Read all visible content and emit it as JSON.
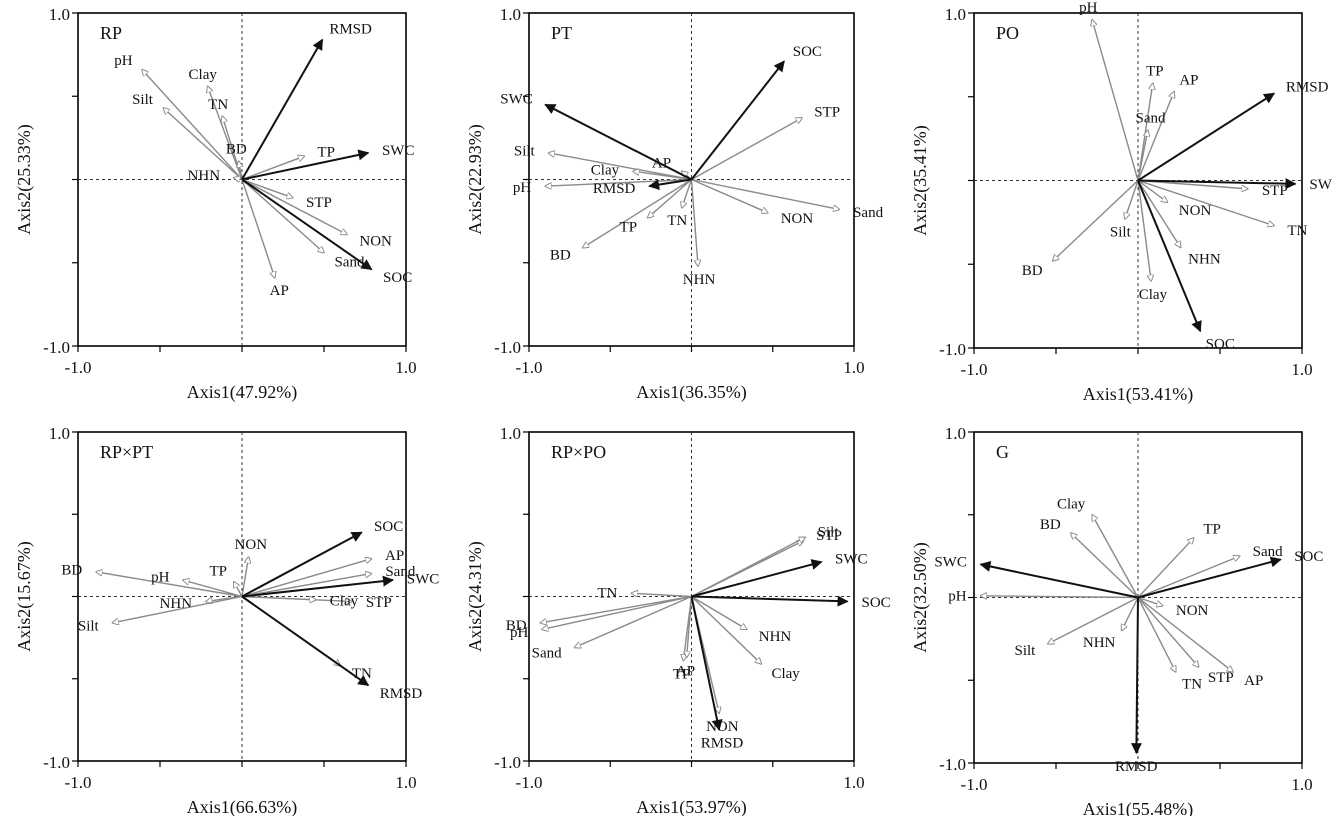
{
  "colors": {
    "env_arrow": "#8a8a8a",
    "response_arrow": "#111111",
    "frame": "#000000",
    "guide": "#333333"
  },
  "chart_data": [
    {
      "type": "scatter",
      "subtype": "rda-biplot",
      "title": "RP",
      "xlabel": "Axis1(47.92%)",
      "ylabel": "Axis2(25.33%)",
      "xlim": [
        -1.0,
        1.0
      ],
      "ylim": [
        -1.0,
        1.0
      ],
      "xticks": [
        "-1.0",
        "1.0"
      ],
      "yticks": [
        "-1.0",
        "1.0"
      ],
      "vectors": [
        {
          "name": "pH",
          "x": -0.61,
          "y": 0.66,
          "type": "env"
        },
        {
          "name": "Silt",
          "x": -0.48,
          "y": 0.43,
          "type": "env"
        },
        {
          "name": "Clay",
          "x": -0.21,
          "y": 0.56,
          "type": "env"
        },
        {
          "name": "TN",
          "x": -0.12,
          "y": 0.38,
          "type": "env"
        },
        {
          "name": "BD",
          "x": -0.02,
          "y": 0.11,
          "type": "env"
        },
        {
          "name": "NHN",
          "x": -0.05,
          "y": 0.01,
          "type": "env"
        },
        {
          "name": "TP",
          "x": 0.38,
          "y": 0.14,
          "type": "env"
        },
        {
          "name": "STP",
          "x": 0.31,
          "y": -0.11,
          "type": "env"
        },
        {
          "name": "NON",
          "x": 0.64,
          "y": -0.33,
          "type": "env"
        },
        {
          "name": "Sand",
          "x": 0.5,
          "y": -0.44,
          "type": "env"
        },
        {
          "name": "AP",
          "x": 0.2,
          "y": -0.59,
          "type": "env"
        },
        {
          "name": "RMSD",
          "x": 0.49,
          "y": 0.84,
          "type": "response"
        },
        {
          "name": "SWC",
          "x": 0.77,
          "y": 0.16,
          "type": "response"
        },
        {
          "name": "SOC",
          "x": 0.79,
          "y": -0.54,
          "type": "response"
        }
      ]
    },
    {
      "type": "scatter",
      "subtype": "rda-biplot",
      "title": "PT",
      "xlabel": "Axis1(36.35%)",
      "ylabel": "Axis2(22.93%)",
      "xlim": [
        -1.0,
        1.0
      ],
      "ylim": [
        -1.0,
        1.0
      ],
      "xticks": [
        "-1.0",
        "1.0"
      ],
      "yticks": [
        "-1.0",
        "1.0"
      ],
      "vectors": [
        {
          "name": "Silt",
          "x": -0.88,
          "y": 0.16,
          "type": "env"
        },
        {
          "name": "pH",
          "x": -0.9,
          "y": -0.04,
          "type": "env"
        },
        {
          "name": "BD",
          "x": -0.67,
          "y": -0.41,
          "type": "env"
        },
        {
          "name": "Clay",
          "x": -0.36,
          "y": 0.05,
          "type": "env"
        },
        {
          "name": "AP",
          "x": -0.06,
          "y": 0.05,
          "type": "env"
        },
        {
          "name": "TP",
          "x": -0.27,
          "y": -0.23,
          "type": "env"
        },
        {
          "name": "TN",
          "x": -0.06,
          "y": -0.17,
          "type": "env"
        },
        {
          "name": "NHN",
          "x": 0.04,
          "y": -0.52,
          "type": "env"
        },
        {
          "name": "NON",
          "x": 0.47,
          "y": -0.2,
          "type": "env"
        },
        {
          "name": "Sand",
          "x": 0.91,
          "y": -0.18,
          "type": "env"
        },
        {
          "name": "STP",
          "x": 0.68,
          "y": 0.37,
          "type": "env"
        },
        {
          "name": "SWC",
          "x": -0.9,
          "y": 0.45,
          "type": "response"
        },
        {
          "name": "SOC",
          "x": 0.57,
          "y": 0.71,
          "type": "response"
        },
        {
          "name": "RMSD",
          "x": -0.26,
          "y": -0.04,
          "type": "response"
        }
      ]
    },
    {
      "type": "scatter",
      "subtype": "rda-biplot",
      "title": "PO",
      "xlabel": "Axis1(53.41%)",
      "ylabel": "Axis2(35.41%)",
      "xlim": [
        -1.0,
        1.0
      ],
      "ylim": [
        -1.0,
        1.0
      ],
      "xticks": [
        "-1.0",
        "1.0"
      ],
      "yticks": [
        "-1.0",
        "1.0"
      ],
      "vectors": [
        {
          "name": "pH",
          "x": -0.28,
          "y": 0.96,
          "type": "env"
        },
        {
          "name": "TP",
          "x": 0.09,
          "y": 0.58,
          "type": "env"
        },
        {
          "name": "AP",
          "x": 0.22,
          "y": 0.53,
          "type": "env"
        },
        {
          "name": "Sand",
          "x": 0.06,
          "y": 0.3,
          "type": "env"
        },
        {
          "name": "STP",
          "x": 0.67,
          "y": -0.05,
          "type": "env"
        },
        {
          "name": "TN",
          "x": 0.83,
          "y": -0.27,
          "type": "env"
        },
        {
          "name": "NON",
          "x": 0.18,
          "y": -0.13,
          "type": "env"
        },
        {
          "name": "NHN",
          "x": 0.26,
          "y": -0.4,
          "type": "env"
        },
        {
          "name": "Clay",
          "x": 0.08,
          "y": -0.6,
          "type": "env"
        },
        {
          "name": "Silt",
          "x": -0.08,
          "y": -0.23,
          "type": "env"
        },
        {
          "name": "BD",
          "x": -0.52,
          "y": -0.48,
          "type": "env"
        },
        {
          "name": "RMSD",
          "x": 0.83,
          "y": 0.52,
          "type": "response"
        },
        {
          "name": "SWC",
          "x": 0.96,
          "y": -0.02,
          "type": "response"
        },
        {
          "name": "SOC",
          "x": 0.38,
          "y": -0.9,
          "type": "response"
        }
      ]
    },
    {
      "type": "scatter",
      "subtype": "rda-biplot",
      "title": "RP×PT",
      "xlabel": "Axis1(66.63%)",
      "ylabel": "Axis2(15.67%)",
      "xlim": [
        -1.0,
        1.0
      ],
      "ylim": [
        -1.0,
        1.0
      ],
      "xticks": [
        "-1.0",
        "1.0"
      ],
      "yticks": [
        "-1.0",
        "1.0"
      ],
      "vectors": [
        {
          "name": "BD",
          "x": -0.89,
          "y": 0.15,
          "type": "env"
        },
        {
          "name": "pH",
          "x": -0.36,
          "y": 0.1,
          "type": "env"
        },
        {
          "name": "TP",
          "x": -0.05,
          "y": 0.09,
          "type": "env"
        },
        {
          "name": "NON",
          "x": 0.04,
          "y": 0.24,
          "type": "env"
        },
        {
          "name": "NHN",
          "x": -0.22,
          "y": -0.03,
          "type": "env"
        },
        {
          "name": "Silt",
          "x": -0.79,
          "y": -0.16,
          "type": "env"
        },
        {
          "name": "AP",
          "x": 0.79,
          "y": 0.23,
          "type": "env"
        },
        {
          "name": "Sand",
          "x": 0.79,
          "y": 0.14,
          "type": "env"
        },
        {
          "name": "STP",
          "x": 0.67,
          "y": -0.03,
          "type": "env"
        },
        {
          "name": "TN",
          "x": 0.6,
          "y": -0.42,
          "type": "env"
        },
        {
          "name": "Clay",
          "x": 0.45,
          "y": -0.02,
          "type": "env"
        },
        {
          "name": "SOC",
          "x": 0.73,
          "y": 0.39,
          "type": "response"
        },
        {
          "name": "SWC",
          "x": 0.92,
          "y": 0.1,
          "type": "response"
        },
        {
          "name": "RMSD",
          "x": 0.77,
          "y": -0.54,
          "type": "response"
        }
      ]
    },
    {
      "type": "scatter",
      "subtype": "rda-biplot",
      "title": "RP×PO",
      "xlabel": "Axis1(53.97%)",
      "ylabel": "Axis2(24.31%)",
      "xlim": [
        -1.0,
        1.0
      ],
      "ylim": [
        -1.0,
        1.0
      ],
      "xticks": [
        "-1.0",
        "1.0"
      ],
      "yticks": [
        "-1.0",
        "1.0"
      ],
      "vectors": [
        {
          "name": "STP",
          "x": 0.69,
          "y": 0.34,
          "type": "env"
        },
        {
          "name": "Silt",
          "x": 0.7,
          "y": 0.36,
          "type": "env"
        },
        {
          "name": "TN",
          "x": -0.37,
          "y": 0.02,
          "type": "env"
        },
        {
          "name": "BD",
          "x": -0.93,
          "y": -0.16,
          "type": "env"
        },
        {
          "name": "pH",
          "x": -0.92,
          "y": -0.2,
          "type": "env"
        },
        {
          "name": "Sand",
          "x": -0.72,
          "y": -0.31,
          "type": "env"
        },
        {
          "name": "TP",
          "x": -0.05,
          "y": -0.39,
          "type": "env"
        },
        {
          "name": "AP",
          "x": -0.03,
          "y": -0.37,
          "type": "env"
        },
        {
          "name": "NHN",
          "x": 0.34,
          "y": -0.2,
          "type": "env"
        },
        {
          "name": "Clay",
          "x": 0.43,
          "y": -0.41,
          "type": "env"
        },
        {
          "name": "NON",
          "x": 0.17,
          "y": -0.71,
          "type": "env"
        },
        {
          "name": "SWC",
          "x": 0.8,
          "y": 0.21,
          "type": "response"
        },
        {
          "name": "SOC",
          "x": 0.96,
          "y": -0.03,
          "type": "response"
        },
        {
          "name": "RMSD",
          "x": 0.17,
          "y": -0.81,
          "type": "response"
        }
      ]
    },
    {
      "type": "scatter",
      "subtype": "rda-biplot",
      "title": "G",
      "xlabel": "Axis1(55.48%)",
      "ylabel": "Axis2(32.50%)",
      "xlim": [
        -1.0,
        1.0
      ],
      "ylim": [
        -1.0,
        1.0
      ],
      "xticks": [
        "-1.0",
        "1.0"
      ],
      "yticks": [
        "-1.0",
        "1.0"
      ],
      "vectors": [
        {
          "name": "Clay",
          "x": -0.28,
          "y": 0.5,
          "type": "env"
        },
        {
          "name": "BD",
          "x": -0.41,
          "y": 0.39,
          "type": "env"
        },
        {
          "name": "TP",
          "x": 0.34,
          "y": 0.36,
          "type": "env"
        },
        {
          "name": "Sand",
          "x": 0.62,
          "y": 0.25,
          "type": "env"
        },
        {
          "name": "pH",
          "x": -0.96,
          "y": 0.01,
          "type": "env"
        },
        {
          "name": "NON",
          "x": 0.15,
          "y": -0.05,
          "type": "env"
        },
        {
          "name": "Silt",
          "x": -0.55,
          "y": -0.28,
          "type": "env"
        },
        {
          "name": "NHN",
          "x": -0.1,
          "y": -0.2,
          "type": "env"
        },
        {
          "name": "TN",
          "x": 0.23,
          "y": -0.45,
          "type": "env"
        },
        {
          "name": "STP",
          "x": 0.37,
          "y": -0.42,
          "type": "env"
        },
        {
          "name": "AP",
          "x": 0.58,
          "y": -0.45,
          "type": "env"
        },
        {
          "name": "SWC",
          "x": -0.96,
          "y": 0.2,
          "type": "response"
        },
        {
          "name": "SOC",
          "x": 0.87,
          "y": 0.23,
          "type": "response"
        },
        {
          "name": "RMSD",
          "x": -0.01,
          "y": -0.94,
          "type": "response"
        }
      ]
    }
  ]
}
